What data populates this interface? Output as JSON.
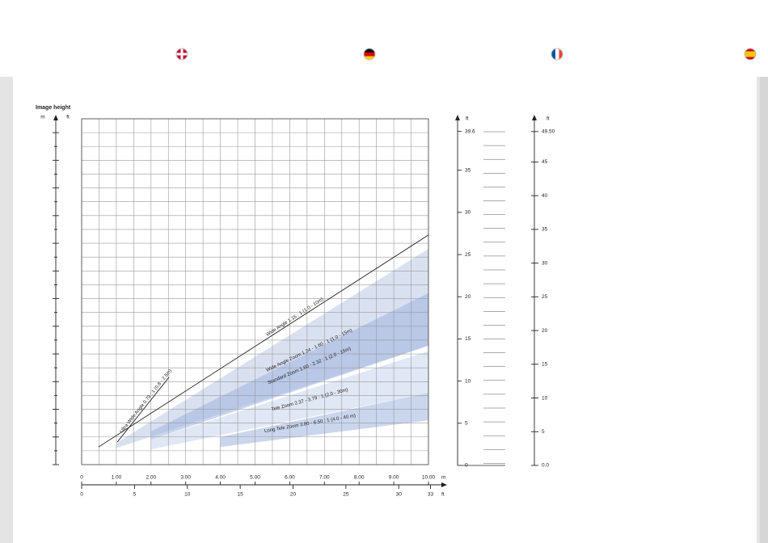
{
  "chart_data": {
    "type": "throw-distance",
    "y_axis_title": "Image height",
    "y_units": [
      "m",
      "ft"
    ],
    "x_units": [
      "m",
      "ft"
    ],
    "xlim": [
      0,
      10
    ],
    "xticks": [
      0,
      {
        "value": 1,
        "label": "1.00"
      },
      {
        "value": 2,
        "label": "2.00"
      },
      {
        "value": 3,
        "label": "3.00"
      },
      {
        "value": 4,
        "label": "4.00"
      },
      {
        "value": 5,
        "label": "5.00"
      },
      {
        "value": 6,
        "label": "6.00"
      },
      {
        "value": 7,
        "label": "7.00"
      },
      {
        "value": 8,
        "label": "8.00"
      },
      {
        "value": 9,
        "label": "9.00"
      },
      {
        "value": 10,
        "label": "10.00"
      }
    ],
    "x2lim": [
      0,
      32.81
    ],
    "x2ticks": [
      0,
      5,
      10,
      15,
      20,
      25,
      30,
      33
    ],
    "ylim": [
      0,
      12.5
    ],
    "yticks": [
      0,
      0.5,
      1,
      1.5,
      2,
      2.5,
      3,
      3.5,
      4,
      4.5,
      5,
      5.5,
      6,
      6.5,
      7,
      7.5,
      8,
      8.5,
      9,
      9.5,
      10,
      10.5,
      11,
      11.5,
      12,
      12.5
    ],
    "y2_unit": "ft",
    "y2lim": [
      0,
      41.1
    ],
    "y2ticks": [
      0,
      5,
      10,
      15,
      20,
      25,
      30,
      35,
      39.6
    ],
    "y3_unit": "ft",
    "y3lim": [
      0,
      51.4
    ],
    "y3ticks": [
      {
        "value": 0,
        "label": "0.0"
      },
      5,
      10,
      15,
      20,
      25,
      30,
      35,
      40,
      45,
      {
        "value": 49.5,
        "label": "49.50"
      }
    ],
    "grid": true,
    "series": [
      {
        "name": "Ultra Wide Angle 0.79 : 1 (0.8 - 2.5m)",
        "kind": "line",
        "color": "#222222",
        "x": [
          1.03,
          2.52
        ],
        "values": [
          0.82,
          3.16
        ]
      },
      {
        "name": "Wide Angle 1.16 : 1 (1.0 - 10m)",
        "kind": "line",
        "color": "#222222",
        "x": [
          0.49,
          10
        ],
        "values": [
          0.64,
          8.3
        ]
      },
      {
        "name": "Wide Angle Zoom 1.24 - 1.60 : 1 (1.0 - 15m)",
        "kind": "band",
        "color": "#b9c9e6",
        "x": [
          1,
          10
        ],
        "upper": [
          0.78,
          7.8
        ],
        "lower": [
          0.6,
          4.3
        ]
      },
      {
        "name": "Standard Zoom 1.60 - 2.32 : 1 (2.0 - 15m)",
        "kind": "band",
        "color": "#9fb5de",
        "x": [
          2,
          10
        ],
        "upper": [
          1.2,
          6.2
        ],
        "lower": [
          0.9,
          4.3
        ]
      },
      {
        "name": "Tele Zoom 2.37 - 3.79 : 1 (2.0 - 30m)",
        "kind": "band",
        "color": "#c6d3ec",
        "x": [
          2,
          10
        ],
        "upper": [
          0.9,
          4.1
        ],
        "lower": [
          0.55,
          2.6
        ]
      },
      {
        "name": "Long Tele Zoom 3.80 - 6.50 : 1 (4.0 - 40 m)",
        "kind": "band",
        "color": "#9fb5de",
        "x": [
          4,
          10
        ],
        "upper": [
          1.0,
          2.6
        ],
        "lower": [
          0.64,
          1.6
        ]
      }
    ]
  }
}
